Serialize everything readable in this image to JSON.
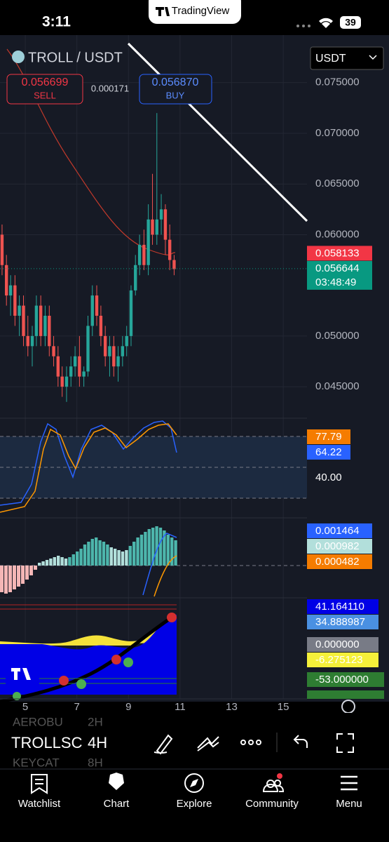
{
  "status_bar": {
    "time": "3:11",
    "app": "TradingView",
    "battery": "39"
  },
  "header": {
    "symbol": "TROLL / USDT",
    "sell_price": "0.056699",
    "sell_label": "SELL",
    "spread": "0.000171",
    "buy_price": "0.056870",
    "buy_label": "BUY",
    "currency": "USDT"
  },
  "chart_data": {
    "type": "candlestick",
    "up_color": "#26a69a",
    "down_color": "#ef5350",
    "x": [
      4.1,
      4.27,
      4.43,
      4.6,
      4.77,
      4.93,
      5.1,
      5.27,
      5.43,
      5.6,
      5.77,
      5.93,
      6.1,
      6.27,
      6.43,
      6.6,
      6.77,
      6.93,
      7.1,
      7.27,
      7.43,
      7.6,
      7.77,
      7.93,
      8.1,
      8.27,
      8.43,
      8.6,
      8.77,
      8.93,
      9.1,
      9.27,
      9.43,
      9.6,
      9.77,
      9.93,
      10.1,
      10.27,
      10.43,
      10.6,
      10.77
    ],
    "open": [
      0.06,
      0.057,
      0.054,
      0.055,
      0.052,
      0.053,
      0.05,
      0.049,
      0.05,
      0.053,
      0.05,
      0.052,
      0.049,
      0.048,
      0.046,
      0.045,
      0.046,
      0.047,
      0.048,
      0.046,
      0.0465,
      0.051,
      0.054,
      0.052,
      0.05,
      0.048,
      0.049,
      0.047,
      0.048,
      0.049,
      0.05,
      0.0545,
      0.057,
      0.059,
      0.057,
      0.0615,
      0.06,
      0.0615,
      0.0625,
      0.0595,
      0.0575
    ],
    "high": [
      0.061,
      0.058,
      0.056,
      0.056,
      0.054,
      0.054,
      0.052,
      0.051,
      0.054,
      0.054,
      0.053,
      0.053,
      0.05,
      0.049,
      0.047,
      0.047,
      0.048,
      0.049,
      0.05,
      0.047,
      0.052,
      0.055,
      0.055,
      0.053,
      0.051,
      0.05,
      0.05,
      0.049,
      0.05,
      0.051,
      0.055,
      0.058,
      0.06,
      0.0605,
      0.063,
      0.066,
      0.072,
      0.064,
      0.063,
      0.061,
      0.058
    ],
    "low": [
      0.056,
      0.053,
      0.052,
      0.051,
      0.05,
      0.049,
      0.048,
      0.047,
      0.049,
      0.049,
      0.049,
      0.048,
      0.047,
      0.045,
      0.044,
      0.0435,
      0.045,
      0.046,
      0.045,
      0.045,
      0.046,
      0.05,
      0.051,
      0.049,
      0.047,
      0.046,
      0.046,
      0.0455,
      0.047,
      0.048,
      0.049,
      0.054,
      0.056,
      0.0565,
      0.056,
      0.059,
      0.059,
      0.06,
      0.058,
      0.0565,
      0.056
    ],
    "close": [
      0.057,
      0.054,
      0.055,
      0.052,
      0.053,
      0.05,
      0.049,
      0.05,
      0.053,
      0.05,
      0.052,
      0.049,
      0.048,
      0.046,
      0.045,
      0.046,
      0.047,
      0.048,
      0.046,
      0.0465,
      0.051,
      0.054,
      0.052,
      0.05,
      0.048,
      0.049,
      0.047,
      0.048,
      0.049,
      0.05,
      0.0545,
      0.057,
      0.059,
      0.057,
      0.0615,
      0.06,
      0.0615,
      0.0625,
      0.0595,
      0.0575,
      0.0566
    ],
    "xlim": [
      4.02,
      15.92
    ],
    "ylim": [
      0.0421,
      0.079
    ],
    "xticks": [
      5,
      7,
      9,
      11,
      13,
      15
    ],
    "yticks": [
      {
        "value": 0.075,
        "label": "0.075000"
      },
      {
        "value": 0.07,
        "label": "0.070000"
      },
      {
        "value": 0.065,
        "label": "0.065000"
      },
      {
        "value": 0.06,
        "label": "0.060000"
      },
      {
        "value": 0.05,
        "label": "0.050000"
      },
      {
        "value": 0.045,
        "label": "0.045000"
      }
    ],
    "grid": true,
    "price_labels": [
      {
        "value": 0.058133,
        "label": "0.058133",
        "color": "#f23645"
      },
      {
        "value": 0.056644,
        "label": "0.056644",
        "color": "#089981"
      }
    ],
    "countdown": "03:48:49"
  },
  "indicators": {
    "stoch": [
      "77.79",
      "64.22",
      "40.00"
    ],
    "macd": [
      "0.001464",
      "0.000982",
      "0.000482"
    ],
    "osc": [
      "41.164110",
      "34.888987",
      "0.000000",
      "-6.275123",
      "-53.000000"
    ]
  },
  "toolbar": {
    "symbol": "TROLLSC",
    "interval": "4H",
    "prev_symbol": "AEROBU",
    "prev_interval": "2H",
    "next_symbol": "KEYCAT",
    "next_interval": "8H"
  },
  "tabs": [
    "Watchlist",
    "Chart",
    "Explore",
    "Community",
    "Menu"
  ]
}
